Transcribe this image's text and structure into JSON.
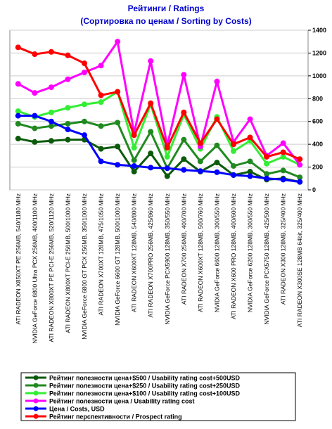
{
  "chart_data": {
    "type": "line",
    "title": "Рейтинги / Ratings",
    "subtitle": "(Сортировка по ценам / Sorting by Costs)",
    "categories": [
      "ATI RADEON X850XT PE 256MB, 540/1180 MHz",
      "NVIDIA GeForce 6800 Ultra PCX 256MB, 400/1100 MHz",
      "ATI RADEON X800XT PE PCI-E 256MB, 520/1120 MHz",
      "ATI RADEON X800XT PCI-E 256MB, 500/1000 MHz",
      "NVIDIA GeForce 6800 GT PCX 256MB, 350/1000 MHz",
      "ATI RADEON X700XT 128MB, 475/1050 MHz",
      "NVIDIA GeForce 6600 GT 128MB, 500/1000 MHz",
      "ATI RADEON X600XT 128MB, 540/800 MHz",
      "ATI RADEON X700PRO 256MB, 425/860 MHz",
      "NVIDIA GeForce PCX5900 128MB, 350/550 MHz",
      "ATI RADEON X700 256MB, 400/700 MHz",
      "ATI RADEON X600XT 128MB, 500/760 MHz",
      "NVIDIA GeForce 6600 128MB, 300/550 MHz",
      "ATI RADEON X600 PRO 128MB, 400/600 MHz",
      "NVIDIA GeForce 6200 128MB, 300/550 MHz",
      "NVIDIA GeForce PCX5750 128MB, 425/500 MHz",
      "ATI RADEON X300 128MB, 325/400 MHz",
      "ATI RADEON X300SE 128MB 64bit, 325/400 MHz"
    ],
    "series": [
      {
        "name": "Рейтинг полезности цена+$500 / Usability rating cost+500USD",
        "color": "#0b5a0b",
        "values": [
          450,
          420,
          430,
          440,
          440,
          360,
          380,
          160,
          320,
          120,
          270,
          160,
          240,
          130,
          160,
          90,
          100,
          70
        ]
      },
      {
        "name": "Рейтинг полезности цена+$250 / Usability rating cost+250USD",
        "color": "#208a20",
        "values": [
          580,
          540,
          560,
          580,
          600,
          560,
          590,
          260,
          510,
          190,
          440,
          250,
          390,
          210,
          250,
          140,
          170,
          110
        ]
      },
      {
        "name": "Рейтинг полезности цена+$100 / Usability rating cost+100USD",
        "color": "#33ee33",
        "values": [
          690,
          640,
          680,
          720,
          750,
          770,
          860,
          370,
          750,
          290,
          660,
          360,
          640,
          340,
          430,
          230,
          290,
          220
        ]
      },
      {
        "name": "Рейтинг полезности цена / Usability rating cost",
        "color": "#ff00ff",
        "values": [
          930,
          850,
          900,
          970,
          1030,
          1090,
          1300,
          500,
          1130,
          390,
          1010,
          380,
          950,
          420,
          620,
          300,
          410,
          220
        ]
      },
      {
        "name": "Цена / Costs, USD",
        "color": "#0000ff",
        "values": [
          650,
          650,
          600,
          530,
          480,
          250,
          220,
          210,
          195,
          190,
          175,
          165,
          155,
          130,
          120,
          100,
          90,
          70
        ]
      },
      {
        "name": "Рейтинг перспективности / Prospect rating",
        "color": "#ff0000",
        "values": [
          1250,
          1190,
          1210,
          1180,
          1110,
          830,
          860,
          480,
          760,
          370,
          680,
          410,
          620,
          400,
          460,
          290,
          330,
          270
        ]
      }
    ],
    "ylim": [
      0,
      1400
    ],
    "yticks": [
      0,
      200,
      400,
      600,
      800,
      1000,
      1200,
      1400
    ],
    "grid": true
  }
}
